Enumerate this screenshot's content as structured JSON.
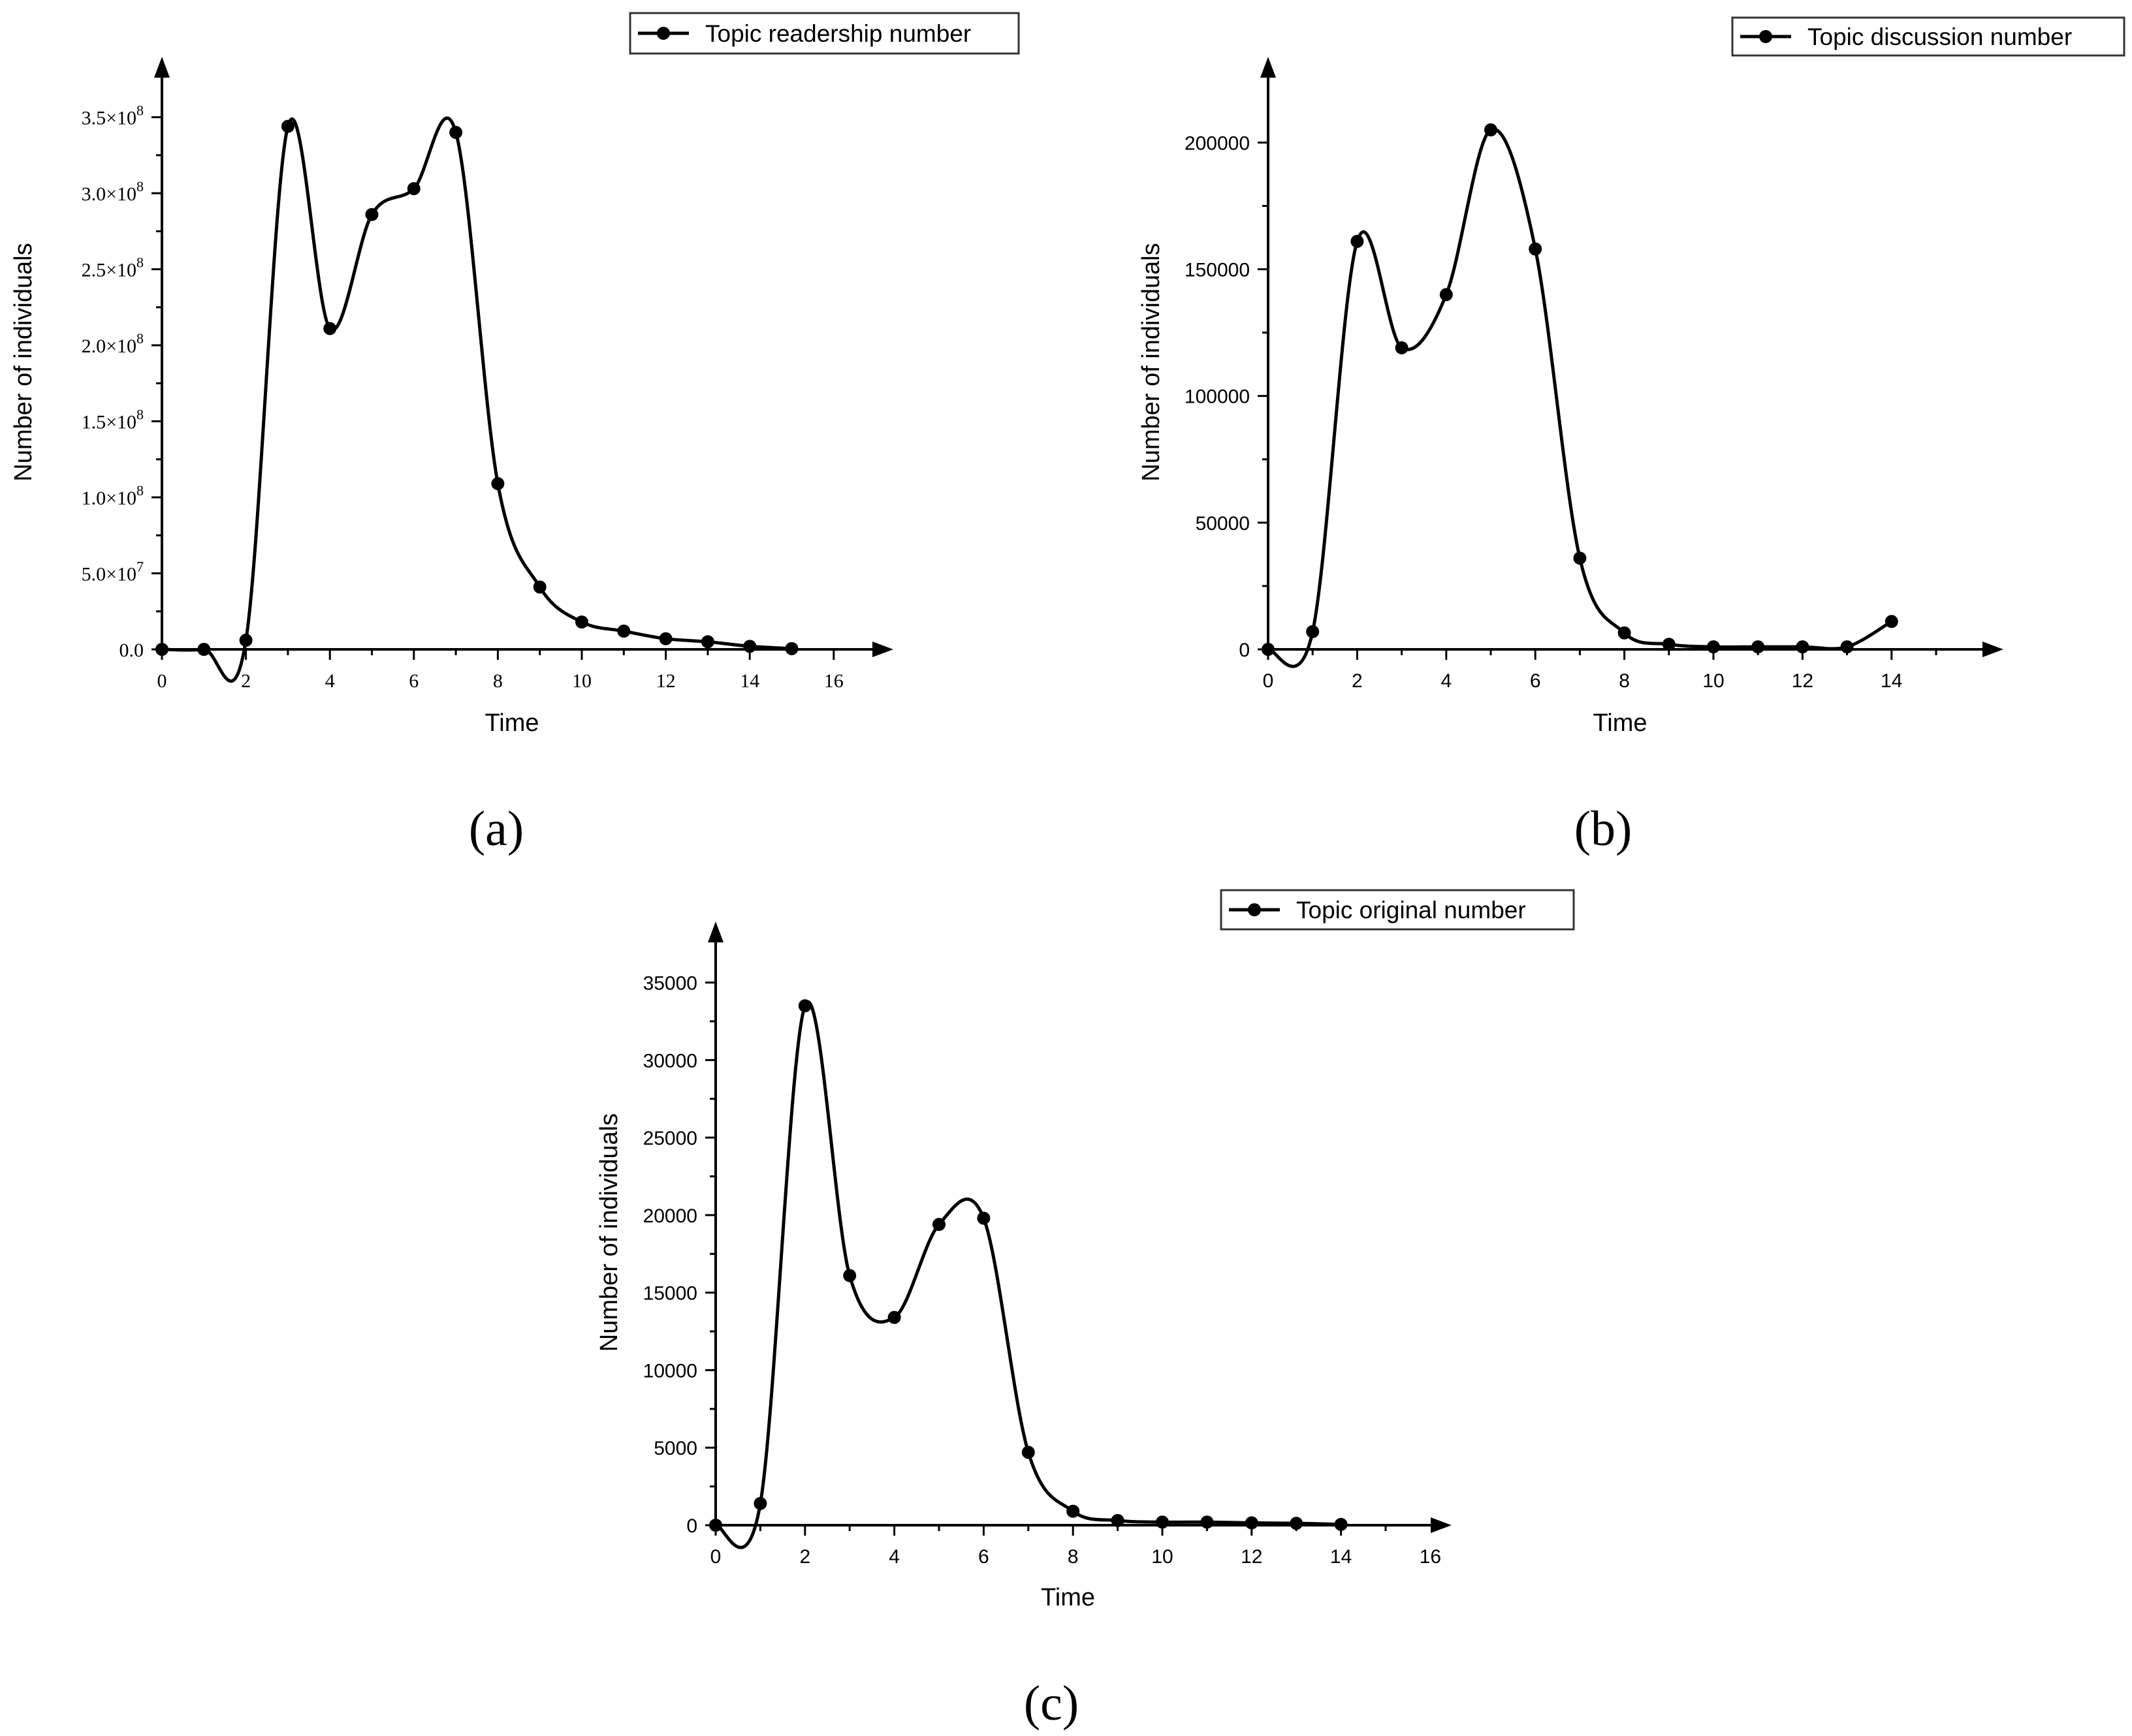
{
  "chart_data": [
    {
      "id": "a",
      "type": "line",
      "panel_label": "(a)",
      "legend": "Topic readership number",
      "xlabel": "Time",
      "ylabel": "Number of individuals",
      "xlim": [
        0,
        17
      ],
      "ylim": [
        0,
        370000000
      ],
      "xticks": [
        0,
        2,
        4,
        6,
        8,
        10,
        12,
        14,
        16
      ],
      "yticks": [
        0,
        50000000,
        100000000,
        150000000,
        200000000,
        250000000,
        300000000,
        350000000
      ],
      "ytick_labels": [
        {
          "mantissa": "0.0",
          "exp": ""
        },
        {
          "mantissa": "5.0",
          "exp": "7"
        },
        {
          "mantissa": "1.0",
          "exp": "8"
        },
        {
          "mantissa": "1.5",
          "exp": "8"
        },
        {
          "mantissa": "2.0",
          "exp": "8"
        },
        {
          "mantissa": "2.5",
          "exp": "8"
        },
        {
          "mantissa": "3.0",
          "exp": "8"
        },
        {
          "mantissa": "3.5",
          "exp": "8"
        }
      ],
      "x": [
        0,
        1,
        2,
        3,
        4,
        5,
        6,
        7,
        8,
        9,
        10,
        11,
        12,
        13,
        14,
        15
      ],
      "y": [
        0,
        0,
        6000000,
        344000000,
        211000000,
        286000000,
        303000000,
        340000000,
        109000000,
        41000000,
        18000000,
        12000000,
        7000000,
        5000000,
        2000000,
        500000
      ]
    },
    {
      "id": "b",
      "type": "line",
      "panel_label": "(b)",
      "legend": "Topic discussion number",
      "xlabel": "Time",
      "ylabel": "Number of individuals",
      "xlim": [
        0,
        16
      ],
      "ylim": [
        0,
        222000
      ],
      "xticks": [
        0,
        2,
        4,
        6,
        8,
        10,
        12,
        14
      ],
      "yticks": [
        0,
        50000,
        100000,
        150000,
        200000
      ],
      "ytick_labels": [
        "0",
        "50000",
        "100000",
        "150000",
        "200000"
      ],
      "x": [
        0,
        1,
        2,
        3,
        4,
        5,
        6,
        7,
        8,
        9,
        10,
        11,
        12,
        13,
        14
      ],
      "y": [
        0,
        7000,
        161000,
        119000,
        140000,
        205000,
        158000,
        36000,
        6500,
        2000,
        1000,
        1000,
        1000,
        1000,
        11000
      ]
    },
    {
      "id": "c",
      "type": "line",
      "panel_label": "(c)",
      "legend": "Topic original number",
      "xlabel": "Time",
      "ylabel": "Number of individuals",
      "xlim": [
        0,
        16
      ],
      "ylim": [
        0,
        37000
      ],
      "xticks": [
        0,
        2,
        4,
        6,
        8,
        10,
        12,
        14,
        16
      ],
      "yticks": [
        0,
        5000,
        10000,
        15000,
        20000,
        25000,
        30000,
        35000
      ],
      "ytick_labels": [
        "0",
        "5000",
        "10000",
        "15000",
        "20000",
        "25000",
        "30000",
        "35000"
      ],
      "x": [
        0,
        1,
        2,
        3,
        4,
        5,
        6,
        7,
        8,
        9,
        10,
        11,
        12,
        13,
        14
      ],
      "y": [
        0,
        1400,
        33500,
        16100,
        13400,
        19400,
        19800,
        4700,
        900,
        300,
        200,
        200,
        150,
        120,
        50
      ]
    }
  ]
}
